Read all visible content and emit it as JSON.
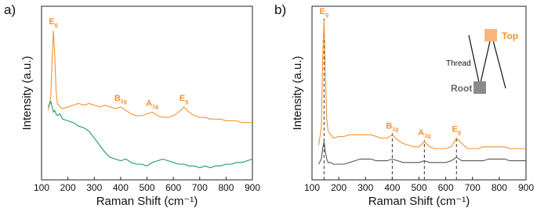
{
  "chart_data": [
    {
      "type": "line",
      "panel_label": "a)",
      "xlabel": "Raman Shift (cm⁻¹)",
      "ylabel": "Intensity (a.u.)",
      "x": [
        125,
        135,
        140,
        145,
        150,
        155,
        160,
        170,
        180,
        200,
        220,
        240,
        260,
        280,
        300,
        320,
        340,
        360,
        380,
        400,
        420,
        440,
        460,
        480,
        500,
        520,
        540,
        560,
        580,
        600,
        620,
        640,
        660,
        680,
        700,
        720,
        740,
        760,
        780,
        800,
        820,
        840,
        860,
        880,
        900
      ],
      "series": [
        {
          "color": "#f5922f",
          "values": [
            40,
            48,
            70,
            86,
            72,
            52,
            44,
            42,
            41,
            42,
            43,
            44,
            43,
            44,
            43,
            42,
            43,
            42,
            41,
            42,
            40,
            38,
            37,
            37,
            38,
            39,
            37,
            36,
            36,
            37,
            39,
            42,
            39,
            37,
            36,
            36,
            35,
            35,
            35,
            34,
            34,
            34,
            33,
            33,
            33
          ]
        },
        {
          "color": "#1a9a6a",
          "values": [
            42,
            45,
            42,
            39,
            40,
            38,
            37,
            38,
            35,
            34,
            33,
            31,
            30,
            28,
            24,
            20,
            16,
            13,
            12,
            11,
            12,
            10,
            9,
            9,
            8,
            10,
            11,
            12,
            11,
            10,
            9,
            9,
            8,
            8,
            7,
            8,
            7,
            8,
            8,
            9,
            9,
            10,
            10,
            11,
            12
          ]
        }
      ],
      "xlim": [
        100,
        900
      ],
      "xticks": [
        100,
        200,
        300,
        400,
        500,
        600,
        700,
        800,
        900
      ],
      "ylim": [
        0,
        100
      ],
      "annotations": [
        {
          "x": 145,
          "label": "E",
          "sub": "g"
        },
        {
          "x": 400,
          "label": "B",
          "sub": "1g"
        },
        {
          "x": 520,
          "label": "A",
          "sub": "1g"
        },
        {
          "x": 640,
          "label": "E",
          "sub": "g"
        }
      ],
      "peak_lines": false
    },
    {
      "type": "line",
      "panel_label": "b)",
      "xlabel": "Raman Shift (cm⁻¹)",
      "ylabel": "Intensity (a.u.)",
      "x": [
        125,
        135,
        140,
        145,
        150,
        155,
        160,
        170,
        180,
        200,
        220,
        240,
        260,
        280,
        300,
        320,
        340,
        360,
        380,
        400,
        420,
        440,
        460,
        480,
        500,
        520,
        540,
        560,
        580,
        600,
        620,
        640,
        660,
        680,
        700,
        720,
        740,
        760,
        780,
        800,
        820,
        840,
        860,
        880,
        900
      ],
      "series": [
        {
          "color": "#f5922f",
          "values": [
            20,
            30,
            70,
            92,
            60,
            35,
            28,
            26,
            24,
            25,
            25,
            26,
            26,
            26,
            26,
            26,
            25,
            24,
            24,
            26,
            23,
            21,
            20,
            19,
            19,
            22,
            19,
            18,
            18,
            18,
            19,
            24,
            21,
            18,
            18,
            18,
            19,
            19,
            19,
            19,
            19,
            18,
            18,
            18,
            18
          ]
        },
        {
          "color": "#555555",
          "values": [
            9,
            12,
            18,
            22,
            16,
            12,
            10,
            10,
            9,
            9,
            9,
            10,
            11,
            12,
            12,
            12,
            11,
            11,
            11,
            12,
            11,
            10,
            10,
            10,
            10,
            11,
            10,
            10,
            10,
            10,
            11,
            13,
            11,
            11,
            11,
            11,
            11,
            12,
            12,
            12,
            12,
            11,
            11,
            11,
            11
          ]
        }
      ],
      "xlim": [
        100,
        900
      ],
      "xticks": [
        100,
        200,
        300,
        400,
        500,
        600,
        700,
        800,
        900
      ],
      "ylim": [
        0,
        100
      ],
      "annotations": [
        {
          "x": 145,
          "label": "E",
          "sub": "g"
        },
        {
          "x": 400,
          "label": "B",
          "sub": "1g"
        },
        {
          "x": 520,
          "label": "A",
          "sub": "1g"
        },
        {
          "x": 640,
          "label": "E",
          "sub": "g"
        }
      ],
      "peak_lines": true,
      "inset": {
        "thread": "Thread",
        "root": "Root",
        "top": "Top"
      }
    }
  ]
}
